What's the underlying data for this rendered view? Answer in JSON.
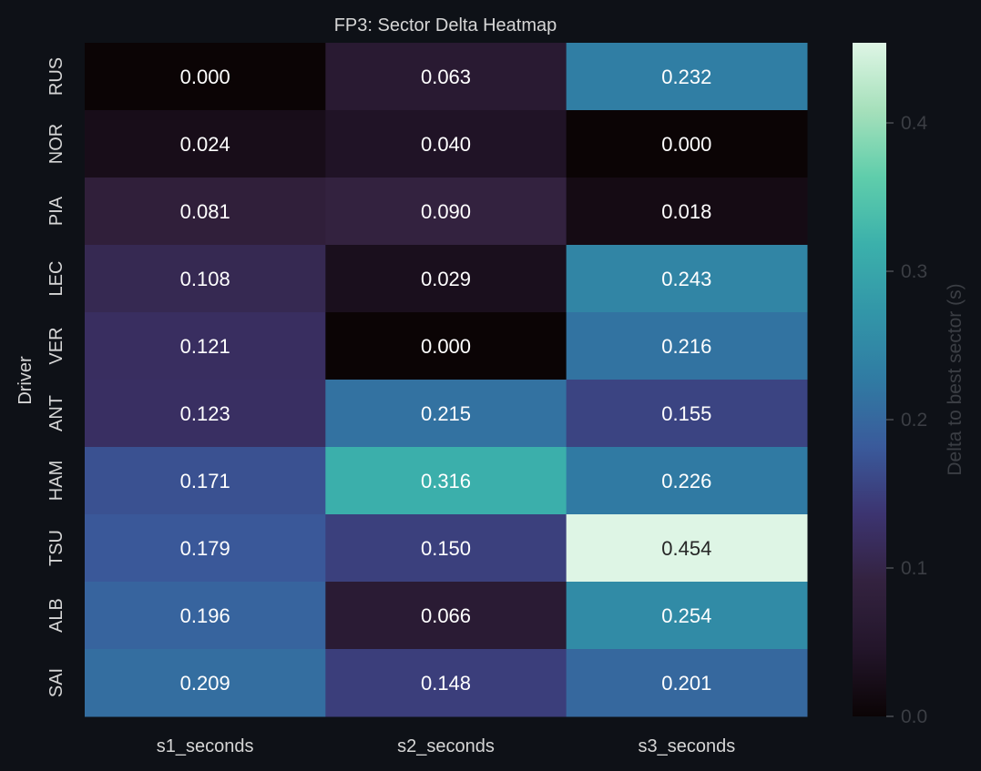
{
  "chart_data": {
    "type": "heatmap",
    "title": "FP3: Sector Delta Heatmap",
    "xlabel": "",
    "ylabel": "Driver",
    "colorbar_label": "Delta to best sector (s)",
    "colormap": "mako",
    "colorbar_range": [
      0.0,
      0.454
    ],
    "colorbar_ticks": [
      "0.0",
      "0.1",
      "0.2",
      "0.3",
      "0.4"
    ],
    "columns": [
      "s1_seconds",
      "s2_seconds",
      "s3_seconds"
    ],
    "rows": [
      "RUS",
      "NOR",
      "PIA",
      "LEC",
      "VER",
      "ANT",
      "HAM",
      "TSU",
      "ALB",
      "SAI"
    ],
    "values": [
      [
        0.0,
        0.063,
        0.232
      ],
      [
        0.024,
        0.04,
        0.0
      ],
      [
        0.081,
        0.09,
        0.018
      ],
      [
        0.108,
        0.029,
        0.243
      ],
      [
        0.121,
        0.0,
        0.216
      ],
      [
        0.123,
        0.215,
        0.155
      ],
      [
        0.171,
        0.316,
        0.226
      ],
      [
        0.179,
        0.15,
        0.454
      ],
      [
        0.196,
        0.066,
        0.254
      ],
      [
        0.209,
        0.148,
        0.201
      ]
    ],
    "background_color": "#0e1117"
  }
}
